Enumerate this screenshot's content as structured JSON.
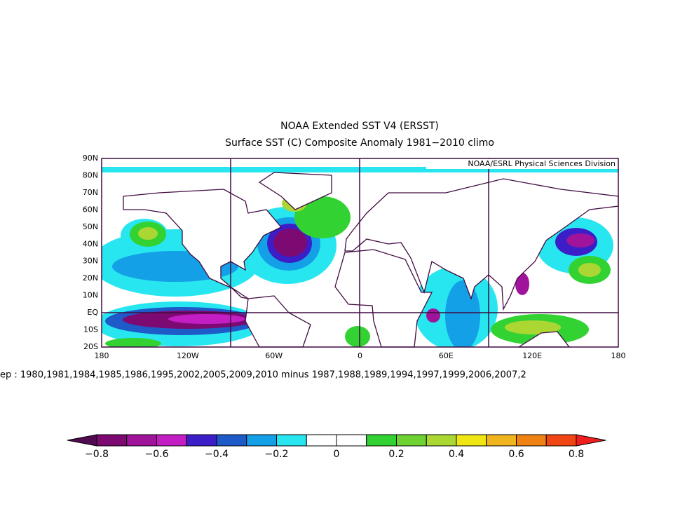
{
  "header": {
    "title": "NOAA Extended SST V4 (ERSST)",
    "subtitle": "Surface SST (C) Composite Anomaly 1981−2010 climo",
    "credit": "NOAA/ESRL Physical Sciences Division"
  },
  "map": {
    "lat_labels": [
      "90N",
      "80N",
      "70N",
      "60N",
      "50N",
      "40N",
      "30N",
      "20N",
      "10N",
      "EQ",
      "10S",
      "20S"
    ],
    "lon_labels": [
      "180",
      "120W",
      "60W",
      "0",
      "60E",
      "120E",
      "180"
    ]
  },
  "caption": "ep : 1980,1981,1984,1985,1986,1995,2002,2005,2009,2010  minus 1987,1988,1989,1994,1997,1999,2006,2007,2",
  "colorbar": {
    "labels": [
      "−0.8",
      "−0.6",
      "−0.4",
      "−0.2",
      "0",
      "0.2",
      "0.4",
      "0.6",
      "0.8"
    ],
    "colors": [
      "#500a50",
      "#7d0a73",
      "#a0149b",
      "#c31ec3",
      "#3c1ec8",
      "#1e5ac8",
      "#14a0e6",
      "#28e6f0",
      "#ffffff",
      "#ffffff",
      "#32d232",
      "#6ed232",
      "#aad732",
      "#f0e614",
      "#f0b41e",
      "#f08214",
      "#f04614",
      "#f01e1e"
    ]
  }
}
